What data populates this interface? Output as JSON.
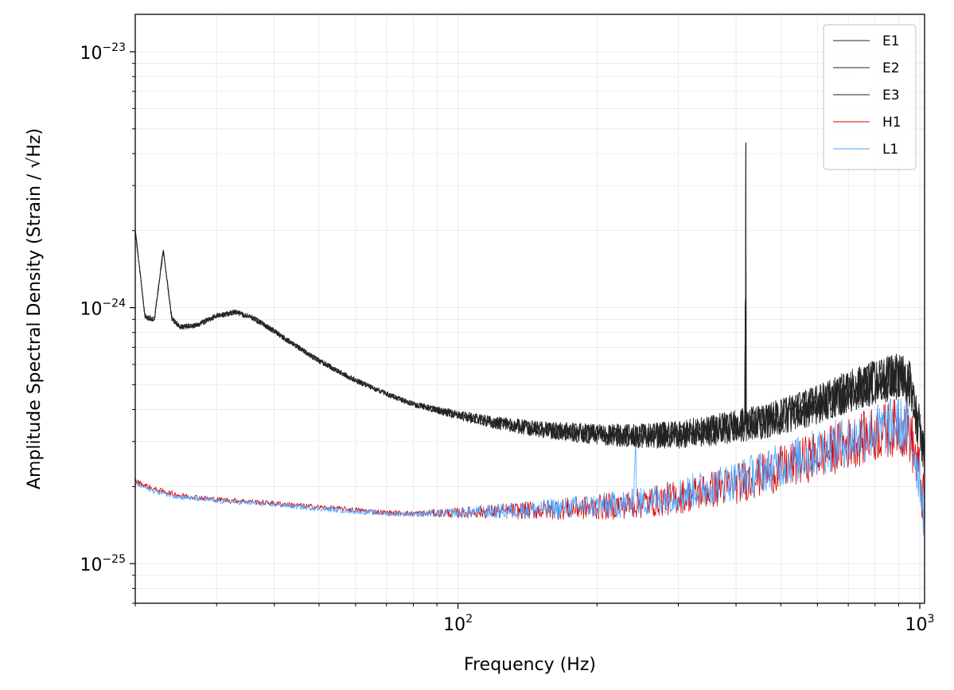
{
  "chart_data": {
    "type": "line",
    "title": "",
    "xlabel": "Frequency (Hz)",
    "ylabel": "Amplitude Spectral Density (Strain / √Hz)",
    "xscale": "log",
    "yscale": "log",
    "xlim": [
      20,
      1024
    ],
    "ylim": [
      7e-26,
      1.4e-23
    ],
    "grid": true,
    "legend_position": "top-right",
    "x_ticks": [
      {
        "value": 100,
        "base": "10",
        "exp": "2"
      },
      {
        "value": 1000,
        "base": "10",
        "exp": "3"
      }
    ],
    "y_ticks": [
      {
        "value": 1e-25,
        "base": "10",
        "exp": "−25"
      },
      {
        "value": 1e-24,
        "base": "10",
        "exp": "−24"
      },
      {
        "value": 1e-23,
        "base": "10",
        "exp": "−23"
      }
    ],
    "series": [
      {
        "name": "E1",
        "color": "#222222",
        "x": [
          20,
          21,
          22,
          23,
          24,
          25,
          27,
          30,
          33,
          36,
          40,
          45,
          50,
          60,
          70,
          80,
          100,
          120,
          150,
          200,
          250,
          300,
          350,
          400,
          418,
          420,
          421,
          422,
          425,
          450,
          500,
          600,
          700,
          800,
          900,
          950,
          1000,
          1024
        ],
        "y": [
          2e-24,
          9.2e-25,
          9e-25,
          1.68e-24,
          9.1e-25,
          8.4e-25,
          8.5e-25,
          9.3e-25,
          9.6e-25,
          9.1e-25,
          8.1e-25,
          7e-25,
          6.2e-25,
          5.2e-25,
          4.6e-25,
          4.2e-25,
          3.8e-25,
          3.55e-25,
          3.35e-25,
          3.2e-25,
          3.15e-25,
          3.2e-25,
          3.3e-25,
          3.45e-25,
          3.5e-25,
          4.4e-24,
          3.5e-25,
          3.5e-25,
          3.5e-25,
          3.55e-25,
          3.75e-25,
          4.2e-25,
          4.7e-25,
          5.1e-25,
          5.4e-25,
          5e-25,
          3.3e-25,
          2.5e-25
        ]
      },
      {
        "name": "E2",
        "color": "#222222",
        "x": [
          20,
          21,
          22,
          23,
          24,
          25,
          27,
          30,
          33,
          36,
          40,
          45,
          50,
          60,
          70,
          80,
          100,
          120,
          150,
          200,
          250,
          300,
          350,
          400,
          418,
          420,
          421,
          422,
          425,
          450,
          500,
          600,
          700,
          800,
          900,
          950,
          1000,
          1024
        ],
        "y": [
          2e-24,
          9.2e-25,
          9e-25,
          1.68e-24,
          9.1e-25,
          8.4e-25,
          8.5e-25,
          9.3e-25,
          9.6e-25,
          9.1e-25,
          8.1e-25,
          7e-25,
          6.2e-25,
          5.2e-25,
          4.6e-25,
          4.2e-25,
          3.8e-25,
          3.55e-25,
          3.35e-25,
          3.2e-25,
          3.15e-25,
          3.2e-25,
          3.3e-25,
          3.45e-25,
          3.5e-25,
          4.4e-24,
          3.5e-25,
          3.5e-25,
          3.5e-25,
          3.55e-25,
          3.75e-25,
          4.2e-25,
          4.7e-25,
          5.1e-25,
          5.4e-25,
          5e-25,
          3.3e-25,
          2.5e-25
        ]
      },
      {
        "name": "E3",
        "color": "#222222",
        "x": [
          20,
          21,
          22,
          23,
          24,
          25,
          27,
          30,
          33,
          36,
          40,
          45,
          50,
          60,
          70,
          80,
          100,
          120,
          150,
          200,
          250,
          300,
          350,
          400,
          418,
          420,
          421,
          422,
          425,
          450,
          500,
          600,
          700,
          800,
          900,
          950,
          1000,
          1024
        ],
        "y": [
          2e-24,
          9.2e-25,
          9e-25,
          1.68e-24,
          9.1e-25,
          8.4e-25,
          8.5e-25,
          9.3e-25,
          9.6e-25,
          9.1e-25,
          8.1e-25,
          7e-25,
          6.2e-25,
          5.2e-25,
          4.6e-25,
          4.2e-25,
          3.8e-25,
          3.55e-25,
          3.35e-25,
          3.2e-25,
          3.15e-25,
          3.2e-25,
          3.3e-25,
          3.45e-25,
          3.5e-25,
          4.4e-24,
          3.5e-25,
          3.5e-25,
          3.5e-25,
          3.55e-25,
          3.75e-25,
          4.2e-25,
          4.7e-25,
          5.1e-25,
          5.4e-25,
          5e-25,
          3.3e-25,
          2.5e-25
        ]
      },
      {
        "name": "H1",
        "color": "#dd0000",
        "x": [
          20,
          22,
          25,
          30,
          35,
          40,
          50,
          60,
          70,
          80,
          100,
          120,
          150,
          200,
          250,
          300,
          400,
          500,
          600,
          700,
          800,
          900,
          950,
          1000,
          1024
        ],
        "y": [
          2.1e-25,
          1.95e-25,
          1.85e-25,
          1.78e-25,
          1.75e-25,
          1.72e-25,
          1.66e-25,
          1.62e-25,
          1.58e-25,
          1.57e-25,
          1.58e-25,
          1.6e-25,
          1.62e-25,
          1.66e-25,
          1.72e-25,
          1.82e-25,
          2.05e-25,
          2.35e-25,
          2.65e-25,
          2.95e-25,
          3.2e-25,
          3.45e-25,
          3.25e-25,
          2.2e-25,
          1.6e-25
        ]
      },
      {
        "name": "L1",
        "color": "#4da6ff",
        "x": [
          20,
          22,
          25,
          30,
          35,
          40,
          50,
          60,
          70,
          80,
          100,
          120,
          150,
          200,
          240,
          242,
          244,
          250,
          300,
          400,
          500,
          600,
          700,
          800,
          900,
          950,
          1000,
          1024
        ],
        "y": [
          2.05e-25,
          1.92e-25,
          1.82e-25,
          1.76e-25,
          1.73e-25,
          1.7e-25,
          1.64e-25,
          1.6e-25,
          1.57e-25,
          1.56e-25,
          1.58e-25,
          1.6e-25,
          1.63e-25,
          1.68e-25,
          1.72e-25,
          3.3e-25,
          1.72e-25,
          1.74e-25,
          1.86e-25,
          2.12e-25,
          2.42e-25,
          2.72e-25,
          3.02e-25,
          3.28e-25,
          3.52e-25,
          3.3e-25,
          2.2e-25,
          1.55e-25
        ]
      }
    ]
  }
}
